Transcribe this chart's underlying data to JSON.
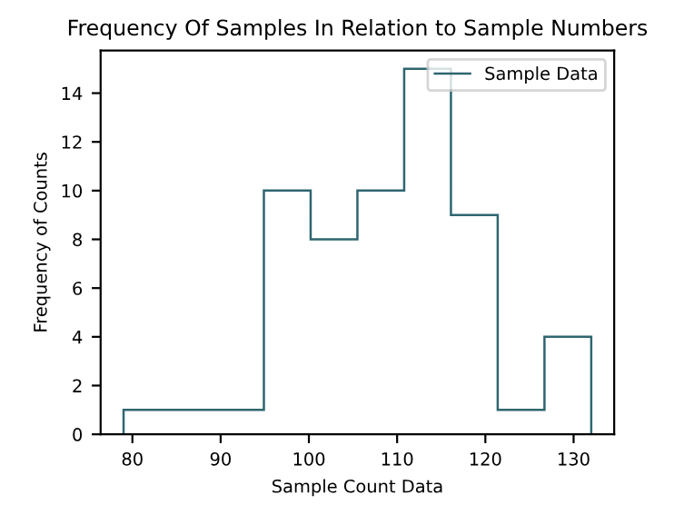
{
  "chart_data": {
    "type": "histogram",
    "title": "Frequency Of Samples In Relation to Sample Numbers",
    "xlabel": "Sample Count Data",
    "ylabel": "Frequency of Counts",
    "bins": [
      79,
      84.3,
      89.6,
      94.9,
      100.2,
      105.5,
      110.8,
      116.1,
      121.4,
      126.7,
      132
    ],
    "series": [
      {
        "name": "Sample Data",
        "color": "#2e6670",
        "values": [
          1,
          1,
          1,
          10,
          8,
          10,
          15,
          9,
          1,
          4
        ]
      }
    ],
    "xlim": [
      76.4,
      134.6
    ],
    "xticks": [
      80,
      90,
      100,
      110,
      120,
      130
    ],
    "ylim": [
      0,
      15.75
    ],
    "yticks": [
      0,
      2,
      4,
      6,
      8,
      10,
      12,
      14
    ],
    "legend": "top right",
    "grid": false
  }
}
